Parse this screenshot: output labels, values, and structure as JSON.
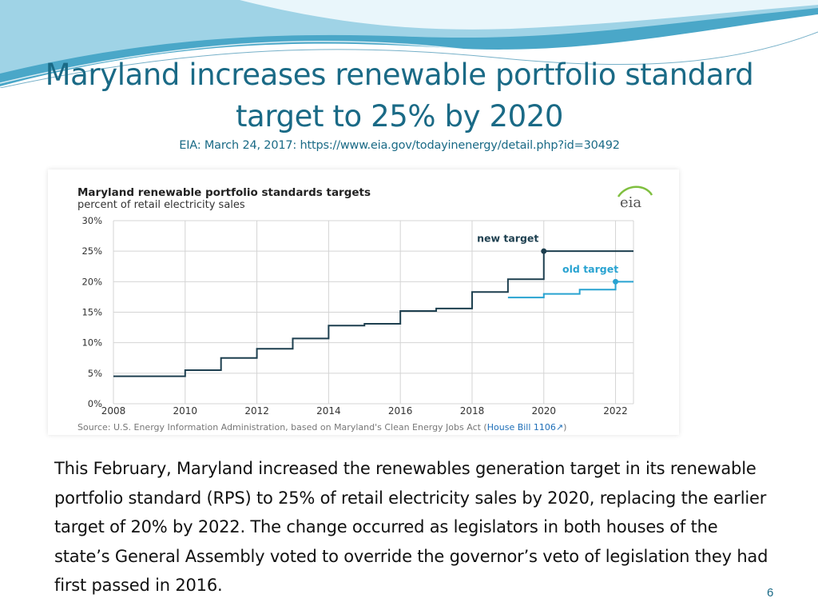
{
  "slide": {
    "title_line1": "Maryland increases renewable portfolio standard",
    "title_line2": "target to 25% by 2020",
    "source": "EIA: March 24, 2017: https://www.eia.gov/todayinenergy/detail.php?id=30492",
    "body": "This February, Maryland increased the renewables generation target in its renewable portfolio standard (RPS) to 25% of retail electricity sales by 2020, replacing the earlier target of 20% by 2022. The change occurred as legislators in both houses of the state’s General Assembly voted to override the governor’s veto of legislation they had first passed in 2016.",
    "page_number": "6"
  },
  "colors": {
    "title": "#1a6a86",
    "new_target": "#1d3f4f",
    "old_target": "#29a3d1",
    "grid": "#d4d4d4"
  },
  "chart_data": {
    "type": "line",
    "step": true,
    "title": "Maryland renewable portfolio standards targets",
    "subtitle": "percent of retail electricity sales",
    "logo": "eia",
    "ylabel": "percent of retail electricity sales",
    "xlim": [
      2008,
      2022.5
    ],
    "ylim": [
      0,
      30
    ],
    "x_ticks": [
      "2008",
      "2010",
      "2012",
      "2014",
      "2016",
      "2018",
      "2020",
      "2022"
    ],
    "y_ticks": [
      "0%",
      "5%",
      "10%",
      "15%",
      "20%",
      "25%",
      "30%"
    ],
    "series": [
      {
        "name": "new target",
        "x": [
          2008,
          2010,
          2011,
          2012,
          2013,
          2014,
          2015,
          2016,
          2017,
          2018,
          2019,
          2020,
          2022.5
        ],
        "values": [
          4.5,
          5.5,
          7.5,
          9.0,
          10.7,
          12.8,
          13.1,
          15.2,
          15.6,
          18.3,
          20.4,
          25.0,
          25.0
        ]
      },
      {
        "name": "old target",
        "x": [
          2019,
          2020,
          2021,
          2022,
          2022.5
        ],
        "values": [
          17.4,
          18.0,
          18.7,
          20.0,
          20.0
        ]
      }
    ],
    "source_prefix": "Source: U.S. Energy Information Administration, based on Maryland's Clean Energy Jobs Act (",
    "source_link": "House Bill 1106",
    "source_suffix": ")"
  }
}
